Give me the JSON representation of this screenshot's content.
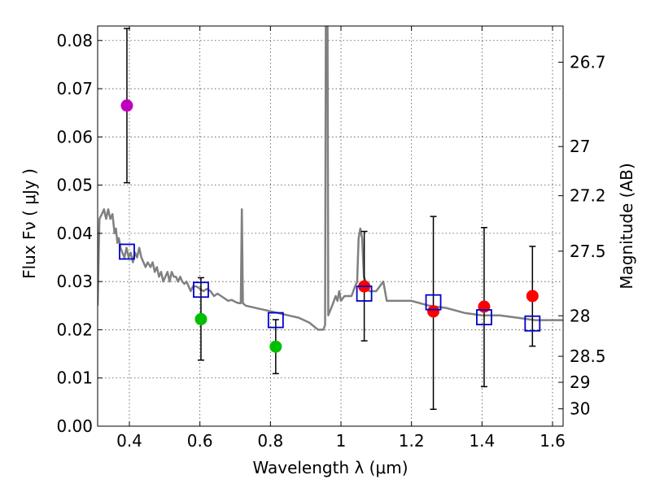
{
  "chart_data": {
    "type": "scatter",
    "title": "",
    "xlabel": "Wavelength  λ (μm)",
    "ylabel": "Flux  Fν  ( μJy )",
    "ylabel_right": "Magnitude (AB)",
    "xlim": [
      0.31,
      1.63
    ],
    "ylim": [
      0.0,
      0.083
    ],
    "grid": true,
    "x_ticks": [
      0.4,
      0.6,
      0.8,
      1.0,
      1.2,
      1.4,
      1.6
    ],
    "x_tick_labels": [
      "0.4",
      "0.6",
      "0.8",
      "1",
      "1.2",
      "1.4",
      "1.6"
    ],
    "y_ticks": [
      0.0,
      0.01,
      0.02,
      0.03,
      0.04,
      0.05,
      0.06,
      0.07,
      0.08
    ],
    "y_tick_labels": [
      "0.00",
      "0.01",
      "0.02",
      "0.03",
      "0.04",
      "0.05",
      "0.06",
      "0.07",
      "0.08"
    ],
    "right_ticks": [
      {
        "flux": 0.0755,
        "label": "26.7"
      },
      {
        "flux": 0.058,
        "label": "27"
      },
      {
        "flux": 0.0478,
        "label": "27.2"
      },
      {
        "flux": 0.0363,
        "label": "27.5"
      },
      {
        "flux": 0.0229,
        "label": "28"
      },
      {
        "flux": 0.0145,
        "label": "28.5"
      },
      {
        "flux": 0.0091,
        "label": "29"
      },
      {
        "flux": 0.0036,
        "label": "30"
      }
    ],
    "colors": {
      "sed": "#808080",
      "model_box": "#0000cc",
      "error_bar": "#000000",
      "violet": "#bf00bf",
      "green": "#00bf00",
      "red": "#ff0000"
    },
    "sed_curve": [
      [
        0.31,
        0.025
      ],
      [
        0.315,
        0.043
      ],
      [
        0.322,
        0.044
      ],
      [
        0.328,
        0.045
      ],
      [
        0.334,
        0.043
      ],
      [
        0.34,
        0.045
      ],
      [
        0.346,
        0.043
      ],
      [
        0.352,
        0.044
      ],
      [
        0.358,
        0.04
      ],
      [
        0.362,
        0.041
      ],
      [
        0.366,
        0.038
      ],
      [
        0.37,
        0.039
      ],
      [
        0.375,
        0.037
      ],
      [
        0.38,
        0.036
      ],
      [
        0.386,
        0.035
      ],
      [
        0.392,
        0.037
      ],
      [
        0.398,
        0.035
      ],
      [
        0.404,
        0.036
      ],
      [
        0.41,
        0.034
      ],
      [
        0.416,
        0.036
      ],
      [
        0.422,
        0.035
      ],
      [
        0.428,
        0.037
      ],
      [
        0.434,
        0.035
      ],
      [
        0.44,
        0.034
      ],
      [
        0.446,
        0.033
      ],
      [
        0.452,
        0.034
      ],
      [
        0.46,
        0.033
      ],
      [
        0.466,
        0.034
      ],
      [
        0.472,
        0.032
      ],
      [
        0.478,
        0.033
      ],
      [
        0.484,
        0.031
      ],
      [
        0.49,
        0.032
      ],
      [
        0.496,
        0.03
      ],
      [
        0.502,
        0.031
      ],
      [
        0.508,
        0.032
      ],
      [
        0.514,
        0.03
      ],
      [
        0.52,
        0.032
      ],
      [
        0.526,
        0.031
      ],
      [
        0.532,
        0.031
      ],
      [
        0.538,
        0.03
      ],
      [
        0.544,
        0.031
      ],
      [
        0.55,
        0.03
      ],
      [
        0.556,
        0.0295
      ],
      [
        0.562,
        0.03
      ],
      [
        0.568,
        0.029
      ],
      [
        0.574,
        0.028
      ],
      [
        0.58,
        0.029
      ],
      [
        0.59,
        0.029
      ],
      [
        0.6,
        0.0285
      ],
      [
        0.61,
        0.028
      ],
      [
        0.62,
        0.0285
      ],
      [
        0.63,
        0.028
      ],
      [
        0.64,
        0.027
      ],
      [
        0.65,
        0.0275
      ],
      [
        0.66,
        0.027
      ],
      [
        0.67,
        0.0265
      ],
      [
        0.68,
        0.026
      ],
      [
        0.69,
        0.0262
      ],
      [
        0.7,
        0.0258
      ],
      [
        0.71,
        0.0255
      ],
      [
        0.716,
        0.0255
      ],
      [
        0.719,
        0.045
      ],
      [
        0.722,
        0.0255
      ],
      [
        0.73,
        0.025
      ],
      [
        0.76,
        0.0245
      ],
      [
        0.79,
        0.024
      ],
      [
        0.82,
        0.0235
      ],
      [
        0.85,
        0.023
      ],
      [
        0.88,
        0.0225
      ],
      [
        0.91,
        0.0215
      ],
      [
        0.935,
        0.02
      ],
      [
        0.95,
        0.02
      ],
      [
        0.955,
        0.021
      ],
      [
        0.957,
        0.083
      ],
      [
        0.962,
        0.083
      ],
      [
        0.964,
        0.023
      ],
      [
        0.975,
        0.025
      ],
      [
        0.985,
        0.027
      ],
      [
        0.99,
        0.026
      ],
      [
        0.995,
        0.028
      ],
      [
        1.0,
        0.026
      ],
      [
        1.01,
        0.027
      ],
      [
        1.03,
        0.027
      ],
      [
        1.04,
        0.029
      ],
      [
        1.046,
        0.03
      ],
      [
        1.05,
        0.039
      ],
      [
        1.055,
        0.041
      ],
      [
        1.06,
        0.039
      ],
      [
        1.065,
        0.031
      ],
      [
        1.08,
        0.028
      ],
      [
        1.1,
        0.028
      ],
      [
        1.12,
        0.03
      ],
      [
        1.13,
        0.026
      ],
      [
        1.16,
        0.026
      ],
      [
        1.2,
        0.026
      ],
      [
        1.25,
        0.025
      ],
      [
        1.3,
        0.0245
      ],
      [
        1.35,
        0.0235
      ],
      [
        1.4,
        0.023
      ],
      [
        1.45,
        0.023
      ],
      [
        1.5,
        0.0225
      ],
      [
        1.55,
        0.022
      ],
      [
        1.6,
        0.022
      ],
      [
        1.63,
        0.022
      ]
    ],
    "model_boxes": [
      {
        "x": 0.393,
        "y": 0.0362
      },
      {
        "x": 0.603,
        "y": 0.0283
      },
      {
        "x": 0.815,
        "y": 0.022
      },
      {
        "x": 1.066,
        "y": 0.0275
      },
      {
        "x": 1.262,
        "y": 0.0257
      },
      {
        "x": 1.406,
        "y": 0.0226
      },
      {
        "x": 1.543,
        "y": 0.0213
      }
    ],
    "observations": [
      {
        "x": 0.393,
        "y": 0.0665,
        "err_low": 0.0505,
        "err_high": 0.0825,
        "color": "violet"
      },
      {
        "x": 0.603,
        "y": 0.0222,
        "err_low": 0.0137,
        "err_high": 0.0308,
        "color": "green"
      },
      {
        "x": 0.815,
        "y": 0.0165,
        "err_low": 0.0109,
        "err_high": 0.0221,
        "color": "green"
      },
      {
        "x": 1.066,
        "y": 0.029,
        "err_low": 0.0177,
        "err_high": 0.0404,
        "color": "red"
      },
      {
        "x": 1.262,
        "y": 0.0238,
        "err_low": 0.0035,
        "err_high": 0.0435,
        "color": "red"
      },
      {
        "x": 1.406,
        "y": 0.0248,
        "err_low": 0.0082,
        "err_high": 0.0412,
        "color": "red"
      },
      {
        "x": 1.543,
        "y": 0.027,
        "err_low": 0.0166,
        "err_high": 0.0373,
        "color": "red"
      }
    ]
  }
}
